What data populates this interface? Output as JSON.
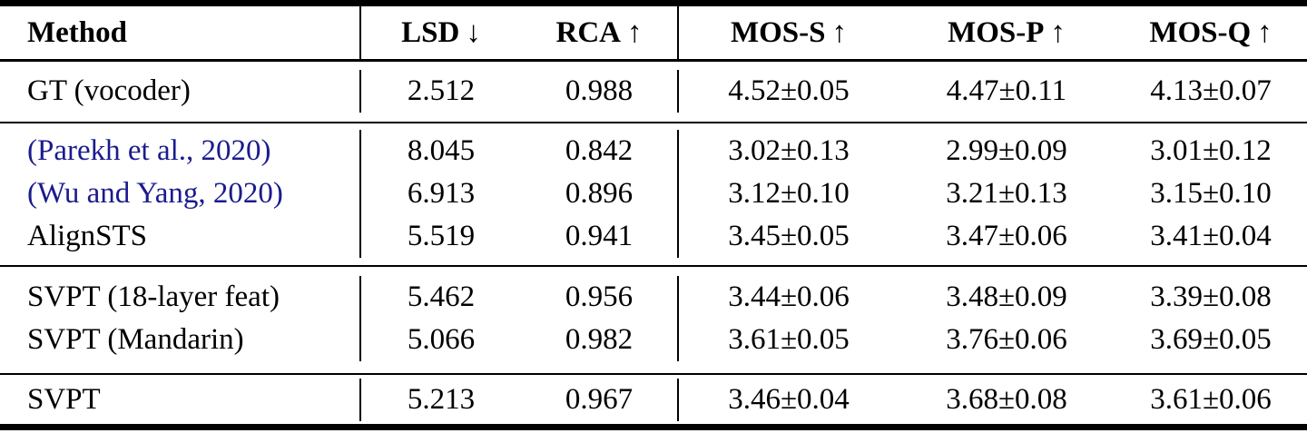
{
  "paper_table": {
    "header": {
      "method_label": "Method",
      "cols": [
        {
          "label": "LSD",
          "arrow": "↓"
        },
        {
          "label": "RCA",
          "arrow": "↑"
        },
        {
          "label": "MOS-S",
          "arrow": "↑"
        },
        {
          "label": "MOS-P",
          "arrow": "↑"
        },
        {
          "label": "MOS-Q",
          "arrow": "↑"
        }
      ]
    },
    "groups": [
      {
        "rows": [
          {
            "method": "GT (vocoder)",
            "is_citation": false,
            "lsd": "2.512",
            "rca": "0.988",
            "mos_s": "4.52±0.05",
            "mos_p": "4.47±0.11",
            "mos_q": "4.13±0.07"
          }
        ]
      },
      {
        "rows": [
          {
            "method": "(Parekh et al., 2020)",
            "is_citation": true,
            "lsd": "8.045",
            "rca": "0.842",
            "mos_s": "3.02±0.13",
            "mos_p": "2.99±0.09",
            "mos_q": "3.01±0.12"
          },
          {
            "method": "(Wu and Yang, 2020)",
            "is_citation": true,
            "lsd": "6.913",
            "rca": "0.896",
            "mos_s": "3.12±0.10",
            "mos_p": "3.21±0.13",
            "mos_q": "3.15±0.10"
          },
          {
            "method": "AlignSTS",
            "is_citation": false,
            "lsd": "5.519",
            "rca": "0.941",
            "mos_s": "3.45±0.05",
            "mos_p": "3.47±0.06",
            "mos_q": "3.41±0.04"
          }
        ]
      },
      {
        "rows": [
          {
            "method": "SVPT (18-layer feat)",
            "is_citation": false,
            "lsd": "5.462",
            "rca": "0.956",
            "mos_s": "3.44±0.06",
            "mos_p": "3.48±0.09",
            "mos_q": "3.39±0.08"
          },
          {
            "method": "SVPT (Mandarin)",
            "is_citation": false,
            "lsd": "5.066",
            "rca": "0.982",
            "mos_s": "3.61±0.05",
            "mos_p": "3.76±0.06",
            "mos_q": "3.69±0.05"
          }
        ]
      },
      {
        "rows": [
          {
            "method": "SVPT",
            "is_citation": false,
            "lsd": "5.213",
            "rca": "0.967",
            "mos_s": "3.46±0.04",
            "mos_p": "3.68±0.08",
            "mos_q": "3.61±0.06"
          }
        ]
      }
    ],
    "colors": {
      "text": "#000000",
      "citation_link": "#1b1b8e",
      "rules": "#000000",
      "background": "#ffffff"
    }
  }
}
